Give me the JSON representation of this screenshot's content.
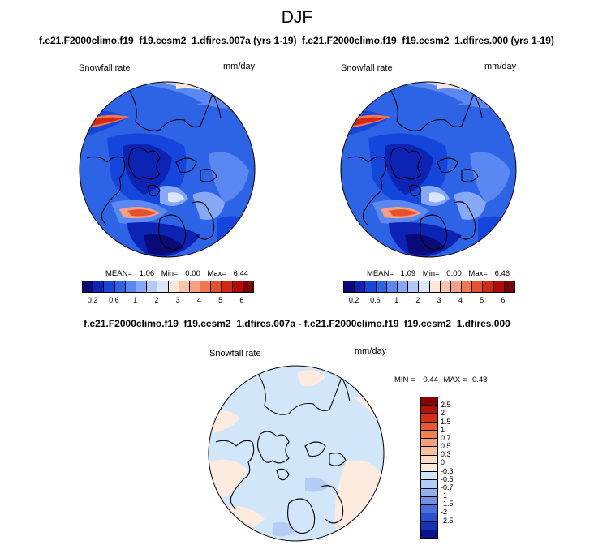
{
  "title": "DJF",
  "chart_data": [
    {
      "type": "heatmap",
      "title": "f.e21.F2000climo.f19_f19.cesm2_1.dfires.007a (yrs 1-19)",
      "variable": "Snowfall rate",
      "units": "mm/day",
      "projection": "north-polar-stereographic",
      "stats": {
        "mean_label": "MEAN=",
        "mean": "1.06",
        "min_label": "Min=",
        "min": "0.00",
        "max_label": "Max=",
        "max": "6.44"
      },
      "colorbar": {
        "orientation": "horizontal",
        "tick_labels": [
          "0.2",
          "0.6",
          "1",
          "2",
          "3",
          "4",
          "5",
          "6"
        ],
        "colors": [
          "#0a0a78",
          "#0c23b4",
          "#1446dc",
          "#2d64e6",
          "#5a87f0",
          "#87a9f5",
          "#b4c8f8",
          "#dce6fb",
          "#fbe6dc",
          "#f8c4aa",
          "#f5a082",
          "#f07850",
          "#e6502d",
          "#d22814",
          "#b40a0a",
          "#780505"
        ]
      }
    },
    {
      "type": "heatmap",
      "title": "f.e21.F2000climo.f19_f19.cesm2_1.dfires.000 (yrs 1-19)",
      "variable": "Snowfall rate",
      "units": "mm/day",
      "projection": "north-polar-stereographic",
      "stats": {
        "mean_label": "MEAN=",
        "mean": "1.09",
        "min_label": "Min=",
        "min": "0.00",
        "max_label": "Max=",
        "max": "6.46"
      },
      "colorbar": {
        "orientation": "horizontal",
        "tick_labels": [
          "0.2",
          "0.6",
          "1",
          "2",
          "3",
          "4",
          "5",
          "6"
        ],
        "colors": [
          "#0a0a78",
          "#0c23b4",
          "#1446dc",
          "#2d64e6",
          "#5a87f0",
          "#87a9f5",
          "#b4c8f8",
          "#dce6fb",
          "#fbe6dc",
          "#f8c4aa",
          "#f5a082",
          "#f07850",
          "#e6502d",
          "#d22814",
          "#b40a0a",
          "#780505"
        ]
      }
    },
    {
      "type": "heatmap",
      "title": "f.e21.F2000climo.f19_f19.cesm2_1.dfires.007a - f.e21.F2000climo.f19_f19.cesm2_1.dfires.000",
      "variable": "Snowfall rate",
      "units": "mm/day",
      "projection": "north-polar-stereographic",
      "stats": {
        "min_label": "MIN =",
        "min": "-0.44",
        "max_label": "MAX =",
        "max": "0.48"
      },
      "colorbar": {
        "orientation": "vertical",
        "tick_labels": [
          "2.5",
          "2",
          "1.5",
          "1",
          "0.7",
          "0.5",
          "0.3",
          "0",
          "-0.3",
          "-0.5",
          "-0.7",
          "-1",
          "-1.5",
          "-2",
          "-2.5"
        ],
        "colors": [
          "#8c0000",
          "#b41405",
          "#d23214",
          "#e65a32",
          "#f08250",
          "#f5a078",
          "#f8c09c",
          "#fcdcc4",
          "#fcebde",
          "#d2e6fa",
          "#b4cdf5",
          "#91b0f0",
          "#6e91e6",
          "#4b6edc",
          "#2850d2",
          "#1432b4",
          "#0a148c"
        ]
      }
    }
  ]
}
